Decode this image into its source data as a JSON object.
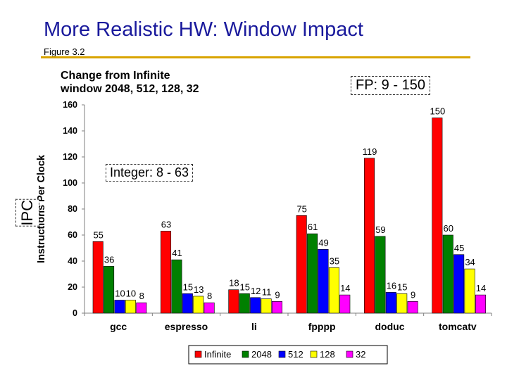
{
  "slide": {
    "title": "More Realistic HW: Window Impact",
    "subtitle": "Figure 3.2",
    "note_line1": "Change from Infinite",
    "note_line2": "window 2048, 512, 128, 32",
    "fp_label": "FP: 9 - 150",
    "int_label": "Integer: 8 - 63",
    "ipc_label": "IPC"
  },
  "colors": {
    "title": "#1a1a9c",
    "rule": "#d9a400"
  },
  "chart_data": {
    "type": "bar",
    "ylabel": "Instructions Per Clock",
    "xlabel": "",
    "ylim": [
      0,
      160
    ],
    "yticks": [
      0,
      20,
      40,
      60,
      80,
      100,
      120,
      140,
      160
    ],
    "grid": false,
    "legend_position": "bottom",
    "categories": [
      "gcc",
      "espresso",
      "li",
      "fpppp",
      "doduc",
      "tomcatv"
    ],
    "series": [
      {
        "name": "Infinite",
        "color": "#ff0000",
        "values": [
          55,
          63,
          18,
          75,
          119,
          150
        ]
      },
      {
        "name": "2048",
        "color": "#008000",
        "values": [
          36,
          41,
          15,
          61,
          59,
          60
        ]
      },
      {
        "name": "512",
        "color": "#0000ff",
        "values": [
          10,
          15,
          12,
          49,
          16,
          45
        ]
      },
      {
        "name": "128",
        "color": "#ffff00",
        "values": [
          10,
          13,
          11,
          35,
          15,
          34
        ]
      },
      {
        "name": "32",
        "color": "#ff00ff",
        "values": [
          8,
          8,
          9,
          14,
          9,
          14
        ]
      }
    ]
  }
}
